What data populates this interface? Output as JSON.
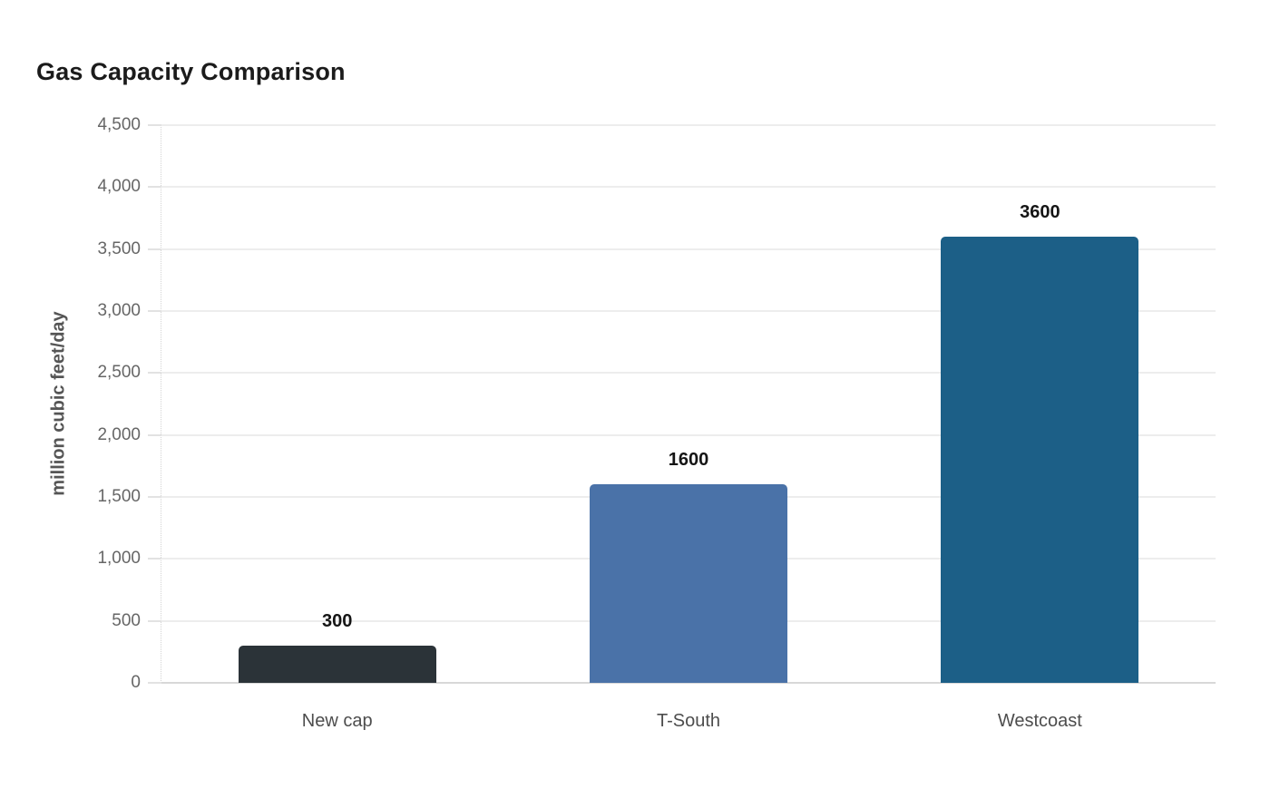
{
  "chart": {
    "title": "Gas Capacity Comparison"
  },
  "chart_data": {
    "type": "bar",
    "title": "Gas Capacity Comparison",
    "categories": [
      "New cap",
      "T-South",
      "Westcoast"
    ],
    "values": [
      300,
      1600,
      3600
    ],
    "value_labels": [
      "300",
      "1600",
      "3600"
    ],
    "bar_colors": [
      "#2b3338",
      "#4a72a8",
      "#1c5f87"
    ],
    "xlabel": "",
    "ylabel": "million cubic feet/day",
    "ylim": [
      0,
      4500
    ],
    "ytick_step": 500,
    "ytick_labels": [
      "0",
      "500",
      "1,000",
      "1,500",
      "2,000",
      "2,500",
      "3,000",
      "3,500",
      "4,000",
      "4,500"
    ],
    "grid": "horizontal",
    "legend": "none",
    "background_color": "#ffffff",
    "gridline_color": "#ededed",
    "baseline_color": "#d8d8d8",
    "title_color": "#1b1b1b",
    "tick_label_color": "#666666",
    "axis_title_color": "#555555",
    "value_label_color": "#151515",
    "category_label_color": "#4d4d4d"
  }
}
